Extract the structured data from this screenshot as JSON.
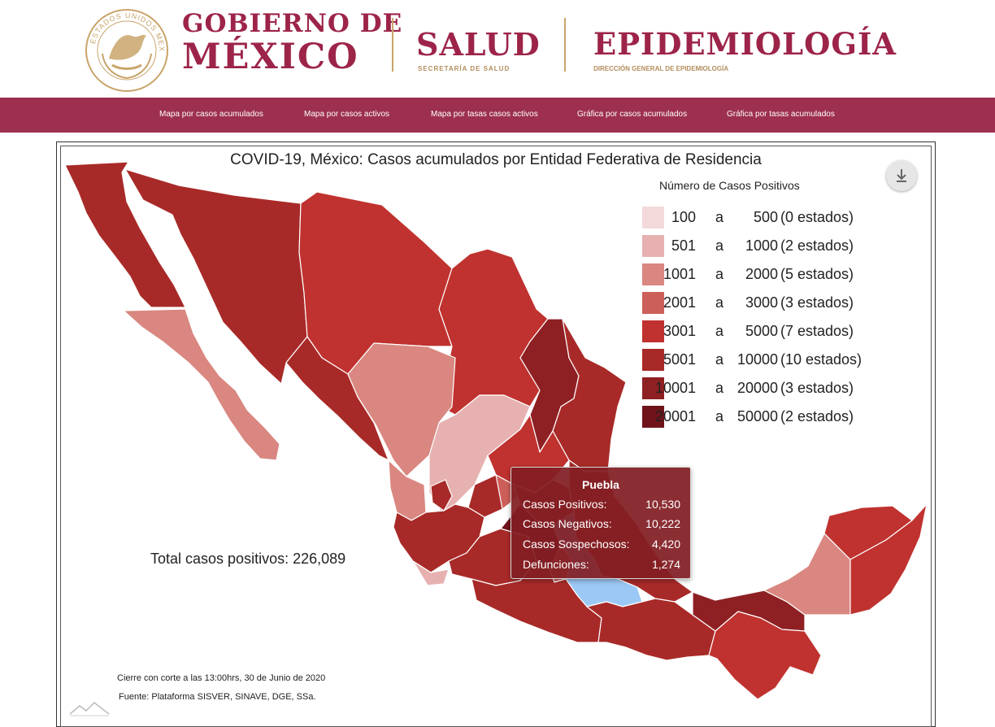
{
  "header": {
    "gob_line1": "GOBIERNO DE",
    "gob_line2": "MÉXICO",
    "seal_text": "ESTADOS UNIDOS MEXICANOS",
    "salud": "SALUD",
    "salud_sub": "SECRETARÍA DE SALUD",
    "epi": "EPIDEMIOLOGÍA",
    "epi_sub": "DIRECCIÓN GENERAL DE EPIDEMIOLOGÍA"
  },
  "nav": {
    "items": [
      "Mapa por casos acumulados",
      "Mapa por casos activos",
      "Mapa por tasas casos activos",
      "Gráfica por casos acumulados",
      "Gráfica por tasas acumulados"
    ]
  },
  "colors": {
    "brand": "#9d2449",
    "nav_bg": "#9d2f4f",
    "gold": "#b38e5d",
    "highlight": "#9cc8f5"
  },
  "map": {
    "title": "COVID-19, México: Casos acumulados por Entidad Federativa de Residencia",
    "legend_title": "Número de Casos Positivos",
    "legend": [
      {
        "from": "100",
        "to": "500",
        "count": "(0 estados)",
        "color": "#f3d9da"
      },
      {
        "from": "501",
        "to": "1000",
        "count": "(2 estados)",
        "color": "#e6b1b0"
      },
      {
        "from": "1001",
        "to": "2000",
        "count": "(5 estados)",
        "color": "#d98780"
      },
      {
        "from": "2001",
        "to": "3000",
        "count": "(3 estados)",
        "color": "#cd5f5a"
      },
      {
        "from": "3001",
        "to": "5000",
        "count": "(7 estados)",
        "color": "#c0322f"
      },
      {
        "from": "5001",
        "to": "10000",
        "count": "(10 estados)",
        "color": "#a82a28"
      },
      {
        "from": "10001",
        "to": "20000",
        "count": "(3 estados)",
        "color": "#8e2023"
      },
      {
        "from": "20001",
        "to": "50000",
        "count": "(2 estados)",
        "color": "#70131a"
      }
    ],
    "legend_connector": "a",
    "total": "Total casos positivos: 226,089",
    "tooltip": {
      "title": "Puebla",
      "rows": [
        {
          "label": "Casos Positivos:",
          "value": "10,530"
        },
        {
          "label": "Casos Negativos:",
          "value": "10,222"
        },
        {
          "label": "Casos Sospechosos:",
          "value": "4,420"
        },
        {
          "label": "Defunciones:",
          "value": "1,274"
        }
      ]
    },
    "footer_cut": "Cierre con corte a las 13:00hrs, 30 de Junio de 2020",
    "footer_source": "Fuente: Plataforma SISVER, SINAVE, DGE, SSa.",
    "download_icon": "download-icon"
  }
}
